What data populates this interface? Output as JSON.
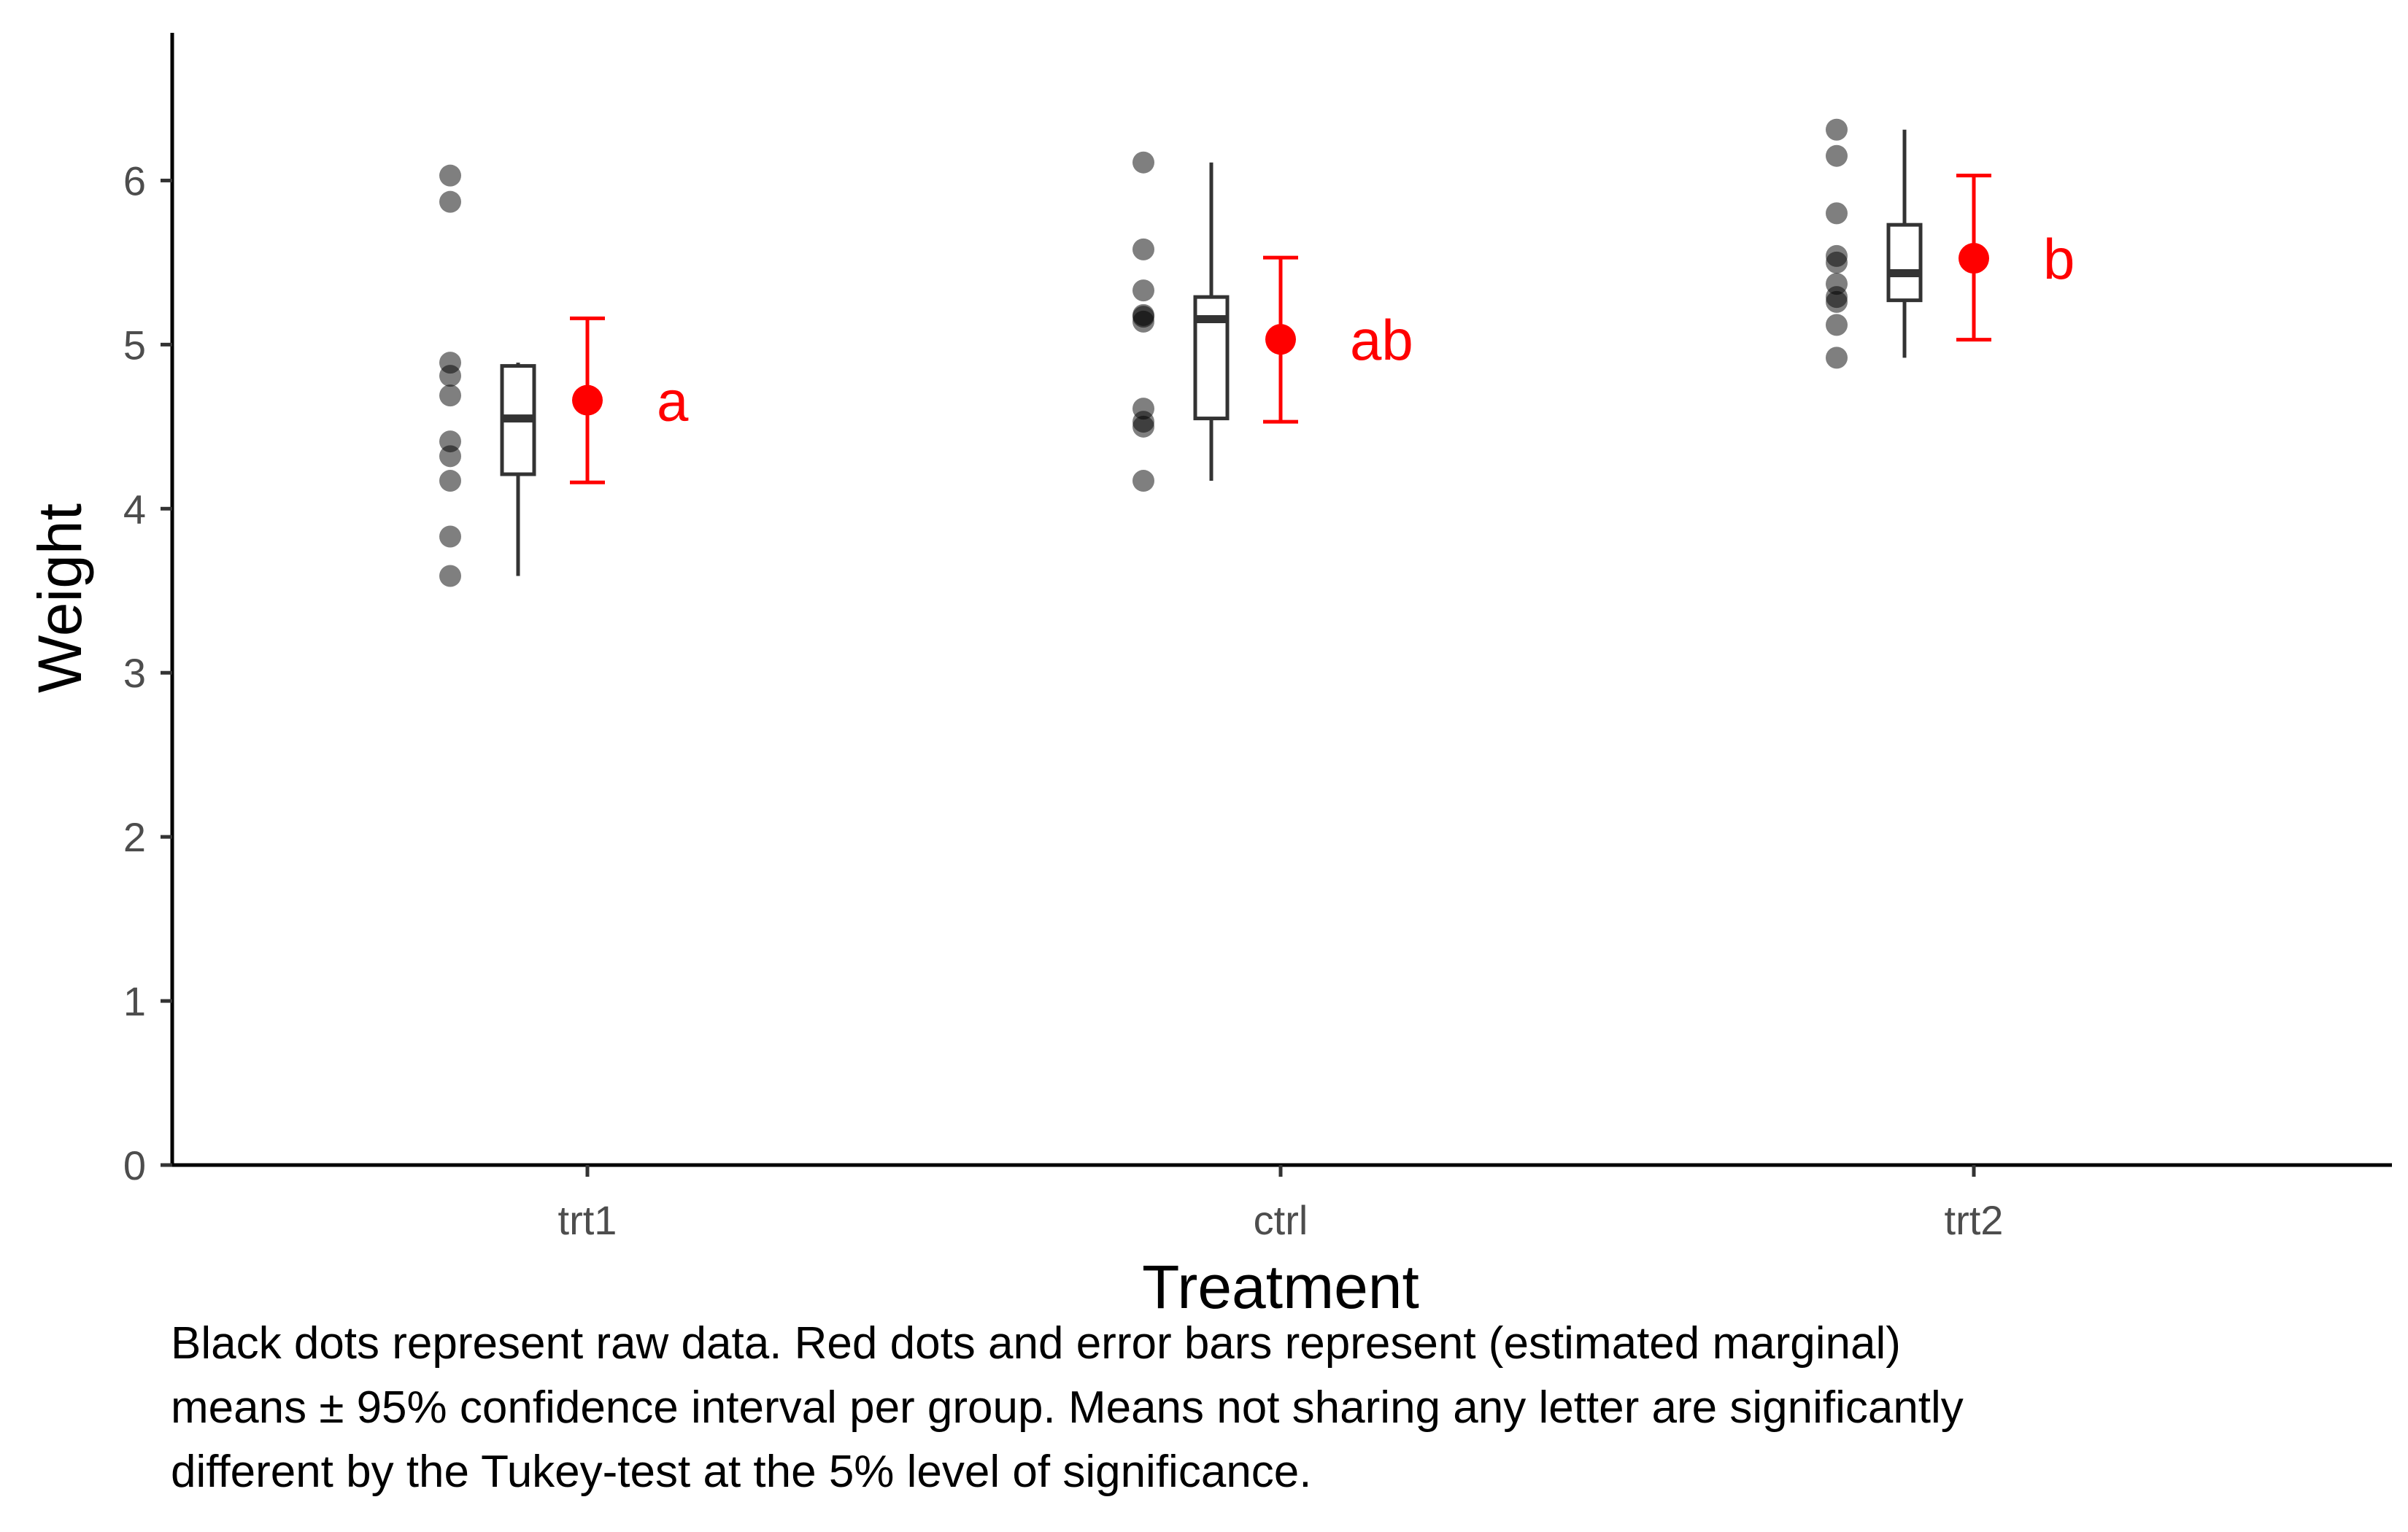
{
  "chart_data": {
    "type": "scatter",
    "xlabel": "Treatment",
    "ylabel": "Weight",
    "ylim": [
      0,
      6.9
    ],
    "yticks": [
      0,
      1,
      2,
      3,
      4,
      5,
      6
    ],
    "categories": [
      "trt1",
      "ctrl",
      "trt2"
    ],
    "groups": [
      {
        "name": "trt1",
        "raw": [
          4.81,
          4.17,
          4.41,
          3.59,
          5.87,
          3.83,
          6.03,
          4.89,
          4.32,
          4.69
        ],
        "box": {
          "min": 3.59,
          "q1": 4.21,
          "median": 4.55,
          "q3": 4.87,
          "max": 4.89
        },
        "mean": 4.661,
        "ci_low": 4.16,
        "ci_high": 5.16,
        "letter": "a"
      },
      {
        "name": "ctrl",
        "raw": [
          4.17,
          5.58,
          5.18,
          6.11,
          4.5,
          4.61,
          5.17,
          4.53,
          5.33,
          5.14
        ],
        "box": {
          "min": 4.17,
          "q1": 4.55,
          "median": 5.155,
          "q3": 5.29,
          "max": 6.11
        },
        "mean": 5.032,
        "ci_low": 4.53,
        "ci_high": 5.53,
        "letter": "ab"
      },
      {
        "name": "trt2",
        "raw": [
          6.31,
          5.12,
          5.54,
          5.5,
          5.37,
          5.29,
          4.92,
          6.15,
          5.8,
          5.26
        ],
        "box": {
          "min": 4.92,
          "q1": 5.27,
          "median": 5.435,
          "q3": 5.73,
          "max": 6.31
        },
        "mean": 5.526,
        "ci_low": 5.03,
        "ci_high": 6.03,
        "letter": "b"
      }
    ],
    "colors": {
      "raw": "#000000",
      "raw_alpha": 0.5,
      "box": "#333333",
      "mean": "#ff0000"
    }
  },
  "caption": {
    "line1": "Black dots represent raw data. Red dots and error bars represent (estimated marginal)",
    "line2": "means ± 95% confidence interval per group. Means not sharing any letter are significantly",
    "line3": "different by the Tukey-test at the 5% level of significance."
  }
}
